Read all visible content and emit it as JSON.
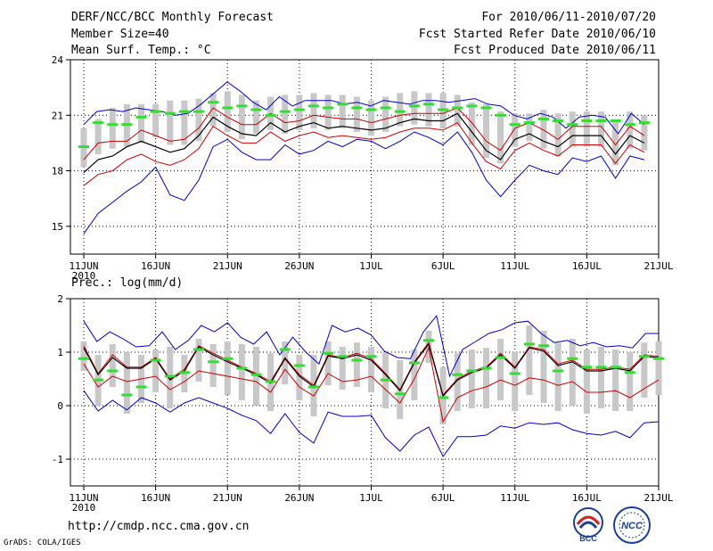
{
  "header": {
    "title": "DERF/NCC/BCC Monthly Forecast",
    "member_size": "Member Size=40",
    "variable": "Mean Surf. Temp.: °C",
    "period": "For 2010/06/11-2010/07/20",
    "refer_date": "Fcst Started Refer Date 2010/06/10",
    "produced_date": "Fcst Produced Date 2010/06/11"
  },
  "footer": {
    "url": "http://cmdp.ncc.cma.gov.cn",
    "credit": "GrADS: COLA/IGES",
    "logo_bcc": "BCC",
    "logo_ncc": "NCC"
  },
  "colors": {
    "max_min": "#0000cc",
    "spread": "#cc0000",
    "mean": "#000000",
    "bar": "#c8c8c8",
    "median": "#33dd33"
  },
  "chart_data": [
    {
      "type": "line",
      "title": "Mean Surf. Temp.: °C",
      "x_tick_labels": [
        "11JUN",
        "16JUN",
        "21JUN",
        "26JUN",
        "1JUL",
        "6JUL",
        "11JUL",
        "16JUL",
        "21JUL"
      ],
      "x_sublabel": "2010",
      "ylim": [
        13.5,
        24
      ],
      "y_ticks": [
        15,
        18,
        21,
        24
      ],
      "grid": true,
      "series": [
        {
          "name": "max",
          "values": [
            20.5,
            21.2,
            21.3,
            21.2,
            21.4,
            21.3,
            21.2,
            21.0,
            21.1,
            21.6,
            22.2,
            22.8,
            22.3,
            21.7,
            21.3,
            22.0,
            21.5,
            21.8,
            21.8,
            21.8,
            21.6,
            21.7,
            21.5,
            21.8,
            21.7,
            21.6,
            21.8,
            21.8,
            21.7,
            21.8,
            21.9,
            21.6,
            21.5,
            21.0,
            20.8,
            21.1,
            20.9,
            20.3,
            20.9,
            21.0,
            20.9,
            20.0,
            21.1,
            20.5
          ]
        },
        {
          "name": "upper",
          "values": [
            18.6,
            19.5,
            19.6,
            19.6,
            20.2,
            19.9,
            19.6,
            19.7,
            20.3,
            21.4,
            20.9,
            20.5,
            20.5,
            21.1,
            20.6,
            20.7,
            21.0,
            20.9,
            20.8,
            20.8,
            20.6,
            20.8,
            21.0,
            21.1,
            21.1,
            21.1,
            21.4,
            20.6,
            19.6,
            19.1,
            20.3,
            20.6,
            20.2,
            19.7,
            20.4,
            20.4,
            20.4,
            19.4,
            20.4,
            19.9
          ]
        },
        {
          "name": "mean",
          "values": [
            17.9,
            18.6,
            18.8,
            19.3,
            19.6,
            19.3,
            19.0,
            19.2,
            19.9,
            20.9,
            20.4,
            20.0,
            19.9,
            20.6,
            20.1,
            20.4,
            20.6,
            20.3,
            20.4,
            20.3,
            20.2,
            20.3,
            20.6,
            20.8,
            20.7,
            20.7,
            21.1,
            20.1,
            19.1,
            18.6,
            19.7,
            20.0,
            19.6,
            19.3,
            19.9,
            19.9,
            19.9,
            18.9,
            19.9,
            19.5
          ]
        },
        {
          "name": "lower",
          "values": [
            17.2,
            17.8,
            18.0,
            18.6,
            18.9,
            18.5,
            18.3,
            18.6,
            19.2,
            20.4,
            19.9,
            19.5,
            19.5,
            20.1,
            19.6,
            19.9,
            20.1,
            19.8,
            19.9,
            19.8,
            19.7,
            19.8,
            20.1,
            20.3,
            20.3,
            20.2,
            20.6,
            19.5,
            18.5,
            18.1,
            19.1,
            19.5,
            19.1,
            18.8,
            19.4,
            19.4,
            19.4,
            18.4,
            19.4,
            19.0
          ]
        },
        {
          "name": "min",
          "values": [
            14.6,
            15.7,
            16.3,
            16.9,
            17.4,
            18.2,
            16.7,
            16.4,
            17.5,
            19.3,
            19.7,
            19.0,
            18.6,
            18.6,
            19.4,
            18.9,
            19.1,
            19.6,
            19.3,
            19.7,
            19.6,
            19.2,
            19.6,
            20.1,
            19.8,
            19.4,
            20.1,
            19.0,
            17.5,
            16.6,
            17.5,
            18.3,
            18.0,
            17.8,
            18.7,
            18.5,
            18.8,
            17.6,
            18.8,
            18.6
          ]
        },
        {
          "name": "box_high",
          "values": [
            20.3,
            20.8,
            21.4,
            21.6,
            21.6,
            21.6,
            21.8,
            21.8,
            21.9,
            22.2,
            22.3,
            22.1,
            21.8,
            22.0,
            22.1,
            22.1,
            22.2,
            22.1,
            22.1,
            22.0,
            21.8,
            22.0,
            22.2,
            22.3,
            22.2,
            22.2,
            22.1,
            21.7,
            21.6,
            21.2,
            21.1,
            21.1,
            21.3,
            21.1,
            21.2,
            21.2,
            21.2,
            20.7,
            21.2,
            21.0
          ]
        },
        {
          "name": "box_low",
          "values": [
            18.2,
            18.9,
            19.2,
            19.3,
            19.5,
            19.8,
            19.4,
            19.4,
            19.6,
            20.4,
            20.1,
            19.7,
            20.0,
            20.2,
            20.0,
            20.2,
            20.3,
            20.2,
            20.3,
            20.1,
            19.9,
            20.1,
            20.4,
            20.5,
            20.4,
            20.3,
            20.4,
            19.4,
            18.7,
            18.4,
            19.3,
            19.6,
            19.2,
            18.8,
            19.3,
            19.3,
            19.3,
            18.3,
            19.2,
            19.1
          ]
        },
        {
          "name": "median",
          "values": [
            19.3,
            20.6,
            20.5,
            20.5,
            20.9,
            21.2,
            21.1,
            21.2,
            21.2,
            21.7,
            21.4,
            21.5,
            21.3,
            21.0,
            21.2,
            21.3,
            21.5,
            21.4,
            21.6,
            21.4,
            21.3,
            21.4,
            21.2,
            21.5,
            21.6,
            21.3,
            21.4,
            21.5,
            21.4,
            21.0,
            20.5,
            20.6,
            20.8,
            20.7,
            20.5,
            20.7,
            20.7,
            20.7,
            20.5,
            20.6
          ]
        }
      ]
    },
    {
      "type": "line",
      "title": "Prec.: log(mm/d)",
      "x_tick_labels": [
        "11JUN",
        "16JUN",
        "21JUN",
        "26JUN",
        "1JUL",
        "6JUL",
        "11JUL",
        "16JUL",
        "21JUL"
      ],
      "x_sublabel": "2010",
      "ylim": [
        -1.5,
        2
      ],
      "y_ticks": [
        -1,
        0,
        1,
        2
      ],
      "grid": true,
      "series": [
        {
          "name": "max",
          "values": [
            1.58,
            1.2,
            1.38,
            1.25,
            1.1,
            1.12,
            1.38,
            1.05,
            1.22,
            1.5,
            1.38,
            1.55,
            1.28,
            1.15,
            1.38,
            0.95,
            1.28,
            1.0,
            0.78,
            1.5,
            1.38,
            1.45,
            1.32,
            1.02,
            0.9,
            0.88,
            1.38,
            1.68,
            0.55,
            1.05,
            1.2,
            1.35,
            1.42,
            1.55,
            1.58,
            1.35,
            1.18,
            1.22,
            1.12,
            1.18,
            1.1,
            1.12,
            1.08,
            1.35,
            1.35
          ]
        },
        {
          "name": "upper",
          "values": [
            1.12,
            0.6,
            0.95,
            0.72,
            0.72,
            0.9,
            0.5,
            0.68,
            1.12,
            0.98,
            0.85,
            0.72,
            0.6,
            0.45,
            0.9,
            0.58,
            0.38,
            0.95,
            0.9,
            0.98,
            0.88,
            0.6,
            0.3,
            0.82,
            1.18,
            0.2,
            0.5,
            0.65,
            0.72,
            0.98,
            0.72,
            1.1,
            1.05,
            0.78,
            0.85,
            0.68,
            0.68,
            0.72,
            0.68,
            0.95,
            0.92
          ]
        },
        {
          "name": "mean",
          "values": [
            1.08,
            0.58,
            0.9,
            0.7,
            0.7,
            0.88,
            0.48,
            0.65,
            1.1,
            0.95,
            0.82,
            0.7,
            0.58,
            0.42,
            0.88,
            0.55,
            0.35,
            0.93,
            0.88,
            0.95,
            0.85,
            0.58,
            0.28,
            0.8,
            1.15,
            0.18,
            0.48,
            0.62,
            0.7,
            0.95,
            0.7,
            1.08,
            1.02,
            0.75,
            0.82,
            0.65,
            0.65,
            0.7,
            0.65,
            0.92,
            0.9
          ]
        },
        {
          "name": "lower",
          "values": [
            0.78,
            0.35,
            0.55,
            0.45,
            0.5,
            0.55,
            0.3,
            0.45,
            0.65,
            0.6,
            0.55,
            0.5,
            0.45,
            0.25,
            0.68,
            0.35,
            0.18,
            0.6,
            0.45,
            0.48,
            0.55,
            0.3,
            0.05,
            0.5,
            1.08,
            -0.3,
            0.15,
            0.28,
            0.35,
            0.48,
            0.38,
            0.52,
            0.48,
            0.38,
            0.45,
            0.25,
            0.25,
            0.28,
            0.15,
            0.32,
            0.48
          ]
        },
        {
          "name": "min",
          "values": [
            0.28,
            -0.1,
            0.1,
            -0.08,
            0.15,
            0.05,
            -0.12,
            0.05,
            0.15,
            0.05,
            -0.05,
            -0.18,
            -0.28,
            -0.52,
            -0.15,
            -0.5,
            -0.7,
            -0.12,
            -0.2,
            -0.2,
            -0.18,
            -0.6,
            -0.85,
            -0.55,
            -0.4,
            -0.95,
            -0.58,
            -0.58,
            -0.55,
            -0.38,
            -0.42,
            -0.32,
            -0.35,
            -0.32,
            -0.45,
            -0.52,
            -0.55,
            -0.48,
            -0.6,
            -0.32,
            -0.3
          ]
        },
        {
          "name": "box_high",
          "values": [
            1.2,
            0.95,
            1.15,
            1.0,
            0.95,
            1.05,
            1.1,
            0.95,
            1.25,
            1.15,
            1.2,
            1.15,
            1.1,
            0.98,
            1.2,
            0.95,
            0.95,
            1.2,
            1.1,
            1.18,
            1.1,
            1.0,
            0.85,
            1.05,
            1.4,
            0.72,
            0.98,
            1.05,
            1.08,
            1.25,
            1.0,
            1.5,
            1.4,
            1.18,
            1.25,
            1.05,
            1.1,
            1.05,
            1.0,
            1.18,
            1.2
          ]
        },
        {
          "name": "box_low",
          "values": [
            0.65,
            0.0,
            0.35,
            -0.15,
            0.05,
            0.25,
            -0.05,
            0.25,
            0.45,
            0.35,
            0.2,
            0.1,
            0.0,
            -0.1,
            0.4,
            0.1,
            -0.2,
            0.38,
            0.3,
            0.35,
            0.25,
            -0.05,
            -0.25,
            0.1,
            0.8,
            -0.35,
            -0.1,
            -0.05,
            -0.05,
            0.1,
            -0.1,
            0.2,
            0.05,
            -0.1,
            0.0,
            -0.15,
            -0.05,
            -0.1,
            -0.1,
            0.15,
            0.2
          ]
        },
        {
          "name": "median",
          "values": [
            0.88,
            0.48,
            0.65,
            0.2,
            0.35,
            0.85,
            0.55,
            0.62,
            1.05,
            0.82,
            0.88,
            0.7,
            0.58,
            0.45,
            1.05,
            0.75,
            0.35,
            0.98,
            0.92,
            0.85,
            0.92,
            0.48,
            0.22,
            0.8,
            1.22,
            0.15,
            0.58,
            0.65,
            0.7,
            0.9,
            0.6,
            1.15,
            1.12,
            0.65,
            0.88,
            0.72,
            0.72,
            0.72,
            0.62,
            0.92,
            0.88
          ]
        }
      ]
    }
  ]
}
